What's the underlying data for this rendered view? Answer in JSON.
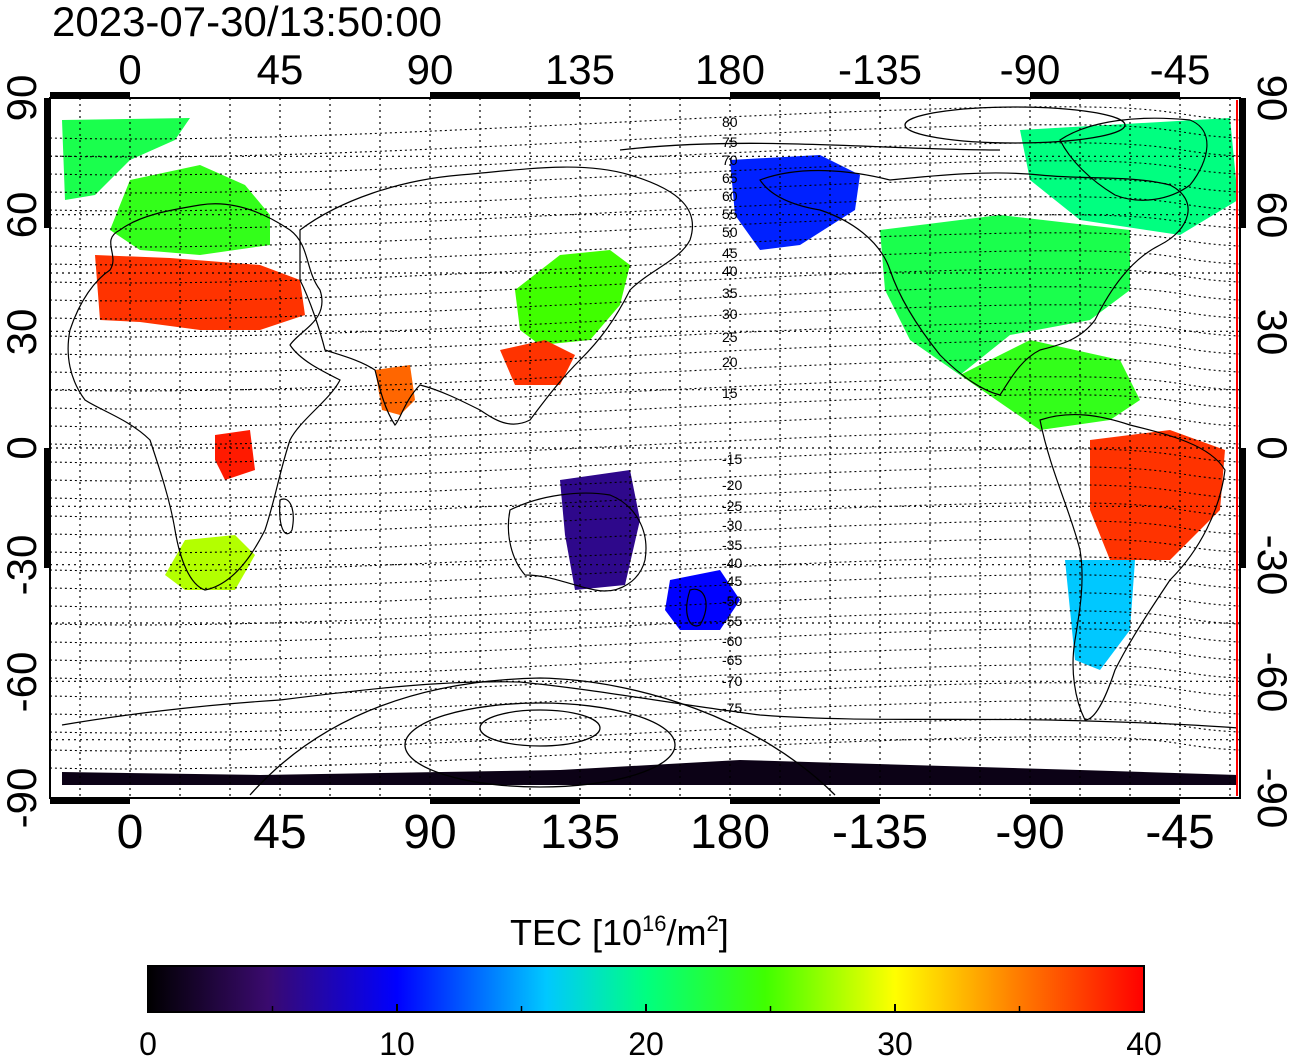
{
  "timestamp": "2023-07-30/13:50:00",
  "axes": {
    "lon_top": [
      "0",
      "45",
      "90",
      "135",
      "180",
      "-135",
      "-90",
      "-45"
    ],
    "lon_bottom": [
      "0",
      "45",
      "90",
      "135",
      "180",
      "-135",
      "-90",
      "-45"
    ],
    "lat_left": [
      "90",
      "60",
      "30",
      "0",
      "-30",
      "-60",
      "-90"
    ],
    "lat_right": [
      "90",
      "60",
      "30",
      "0",
      "-30",
      "-60",
      "-90"
    ]
  },
  "contour_labels": [
    "80",
    "75",
    "70",
    "65",
    "60",
    "55",
    "50",
    "45",
    "40",
    "35",
    "30",
    "25",
    "20",
    "15",
    "-15",
    "-20",
    "-25",
    "-30",
    "-35",
    "-40",
    "-45",
    "-50",
    "-55",
    "-60",
    "-65",
    "-70",
    "-75"
  ],
  "colorbar": {
    "title_main": "TEC  [10",
    "title_exp": "16",
    "title_mid": "/m",
    "title_exp2": "2",
    "title_end": "]",
    "ticks": [
      "0",
      "10",
      "20",
      "30",
      "40"
    ],
    "range": [
      0,
      40
    ],
    "colors": [
      "#000000",
      "#3a0a6e",
      "#0000ff",
      "#00ffff",
      "#00ff00",
      "#ffff00",
      "#ff8000",
      "#ff0000"
    ]
  },
  "regions": [
    {
      "name": "north-atlantic-arctic",
      "value": 22
    },
    {
      "name": "europe-north",
      "value": 24
    },
    {
      "name": "europe-south",
      "value": 38
    },
    {
      "name": "india",
      "value": 36
    },
    {
      "name": "east-asia",
      "value": 25
    },
    {
      "name": "china-south",
      "value": 38
    },
    {
      "name": "africa-central",
      "value": 39
    },
    {
      "name": "south-africa",
      "value": 28
    },
    {
      "name": "australia",
      "value": 6
    },
    {
      "name": "new-zealand",
      "value": 10
    },
    {
      "name": "alaska",
      "value": 11
    },
    {
      "name": "canada",
      "value": 20
    },
    {
      "name": "usa",
      "value": 22
    },
    {
      "name": "central-america",
      "value": 24
    },
    {
      "name": "brazil",
      "value": 38
    },
    {
      "name": "argentina",
      "value": 16
    },
    {
      "name": "antarctica",
      "value": 1
    }
  ]
}
